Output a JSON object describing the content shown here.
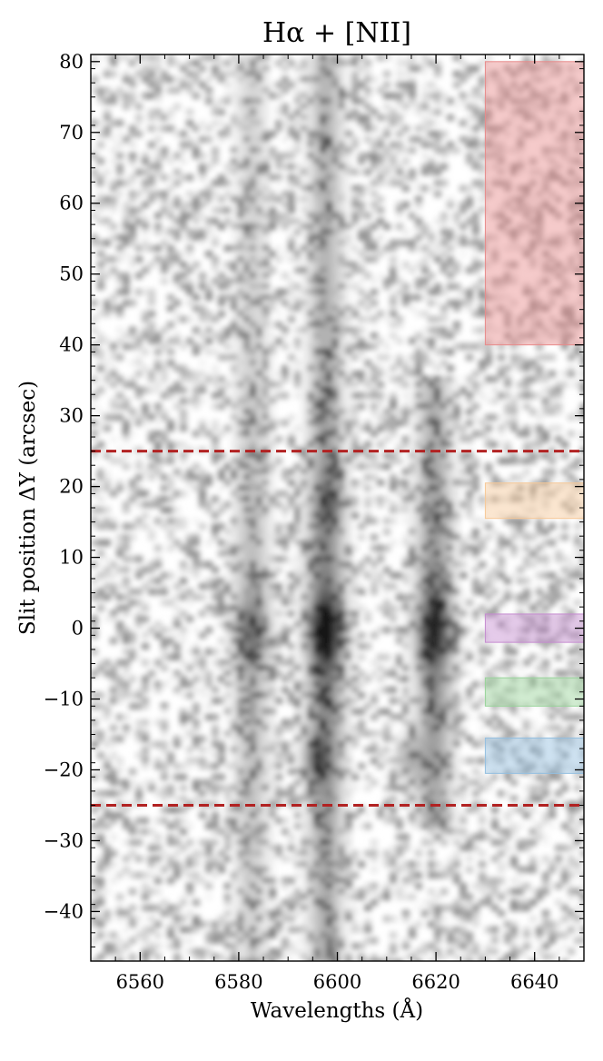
{
  "chart_data": {
    "type": "heatmap",
    "title": "Hα + [NII]",
    "xlabel": "Wavelengths (Å)",
    "ylabel": "Slit position ΔY (arcsec)",
    "xlim": [
      6550,
      6650
    ],
    "ylim": [
      -47,
      81
    ],
    "grid": false,
    "colormap": "grayscale, darker = brighter emission",
    "x_ticks": [
      6560,
      6580,
      6600,
      6620,
      6640
    ],
    "y_ticks": [
      -40,
      -30,
      -20,
      -10,
      0,
      10,
      20,
      30,
      40,
      50,
      60,
      70,
      80
    ],
    "x_tick_labels": [
      "6560",
      "6580",
      "6600",
      "6620",
      "6640"
    ],
    "y_tick_labels": [
      "−40",
      "−30",
      "−20",
      "−10",
      "0",
      "10",
      "20",
      "30",
      "40",
      "50",
      "60",
      "70",
      "80"
    ],
    "emission_lines": [
      {
        "wavelength": 6582,
        "peak_y": 0,
        "extent": [
          -47,
          81
        ],
        "strength": 0.55
      },
      {
        "wavelength": 6597,
        "peak_y": 0,
        "extent": [
          -47,
          81
        ],
        "strength": 1.0
      },
      {
        "wavelength": 6619,
        "peak_y": 0,
        "extent": [
          -28,
          36
        ],
        "strength": 0.85
      }
    ],
    "secondary_knots": [
      {
        "wavelength": 6595,
        "y": -18,
        "strength": 0.45
      },
      {
        "wavelength": 6614,
        "y": -18,
        "strength": 0.35
      },
      {
        "wavelength": 6598,
        "y": 18,
        "strength": 0.3
      }
    ],
    "dashed_lines": [
      {
        "y": 25,
        "color": "#b22222"
      },
      {
        "y": -25,
        "color": "#b22222"
      }
    ],
    "regions": [
      {
        "x": [
          6630,
          6650
        ],
        "y": [
          40,
          80
        ],
        "color": "#e88a8a"
      },
      {
        "x": [
          6630,
          6650
        ],
        "y": [
          15.5,
          20.5
        ],
        "color": "#f7c896"
      },
      {
        "x": [
          6630,
          6650
        ],
        "y": [
          -2,
          2
        ],
        "color": "#c58bd0"
      },
      {
        "x": [
          6630,
          6650
        ],
        "y": [
          -11,
          -7
        ],
        "color": "#98d49a"
      },
      {
        "x": [
          6630,
          6650
        ],
        "y": [
          -20.5,
          -15.5
        ],
        "color": "#93bfe0"
      }
    ]
  }
}
